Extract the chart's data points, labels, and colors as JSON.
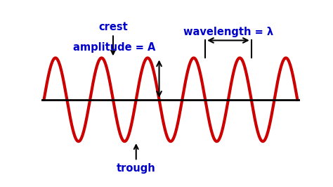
{
  "background_color": "#ffffff",
  "wave_color": "#cc0000",
  "wave_linewidth": 3.0,
  "axis_color": "#000000",
  "axis_linewidth": 2.0,
  "annotation_color": "#0000cc",
  "amplitude": 1.0,
  "num_cycles": 5.5,
  "num_points": 2000,
  "crest_label": "crest",
  "trough_label": "trough",
  "amplitude_label": "amplitude = A",
  "wavelength_label": "wavelength = λ",
  "annotation_fontsize": 10.5,
  "annotation_fontweight": "bold",
  "ylim_bottom": -1.6,
  "ylim_top": 1.85,
  "xlim_left": -0.05,
  "xlim_right": 5.55,
  "crest_peak_x": 1.5,
  "trough_valley_x": 2.0,
  "amp_crest_x": 2.5,
  "wl_crest1_x": 3.5,
  "wl_crest2_x": 4.5
}
